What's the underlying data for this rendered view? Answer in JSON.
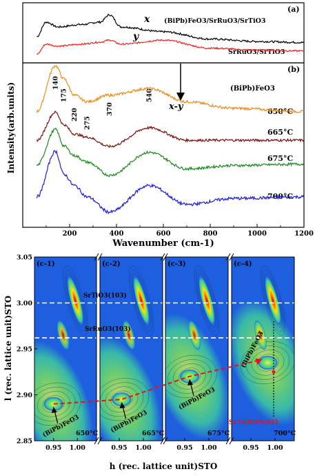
{
  "panel_a": {
    "label": "(a)",
    "x_label": "x",
    "y_label": "y",
    "legend_top": "(BiPb)FeO3/SrRuO3/SrTiO3",
    "legend_bottom": "SrRuO3/SrTiO3",
    "colors": {
      "x": "#000000",
      "y": "#ff2020"
    }
  },
  "panel_b": {
    "label": "(b)",
    "compound": "(BiPb)FeO3",
    "diff_label": "x-y",
    "ylabel": "Intensity(arb.units)",
    "xlabel": "Wavenumber (cm-1)",
    "peaks": [
      "140",
      "175",
      "220",
      "275",
      "370",
      "540"
    ],
    "temps": [
      "650°C",
      "665°C",
      "675°C",
      "700°C"
    ],
    "colors": [
      "#f08a1c",
      "#7a1212",
      "#1a8a1a",
      "#1a1ae0"
    ],
    "x_ticks": [
      "200",
      "400",
      "600",
      "800",
      "1000",
      "1200"
    ]
  },
  "panel_c": {
    "ylabel": "l (rec. lattice unit)STO",
    "xlabel": "h (rec. lattice unit)STO",
    "y_ticks": [
      "3.05",
      "3.00",
      "2.95",
      "2.90",
      "2.85"
    ],
    "x_ticks": [
      "0.95",
      "1.00"
    ],
    "subpanels": [
      {
        "label": "(c-1)",
        "temp": "650°C"
      },
      {
        "label": "(c-2)",
        "temp": "665°C"
      },
      {
        "label": "(c-3)",
        "temp": "675°C"
      },
      {
        "label": "(c-4)",
        "temp": "700°C"
      }
    ],
    "ann_sto": "SrTiO3(103)",
    "ann_sro": "SrRuO3(103)",
    "ann_bpfo": "(BiPb)FeO3",
    "ann_sti": "SrTi(BiPb)O3",
    "colors": {
      "bg": "#1e5fe0",
      "dash_red": "#e81010"
    }
  },
  "chart_data": [
    {
      "type": "line",
      "title": "",
      "xlabel": "Wavenumber (cm-1)",
      "ylabel": "Intensity(arb.units)",
      "xlim": [
        0,
        1200
      ],
      "series": [
        {
          "name": "x",
          "x": [
            60,
            100,
            150,
            250,
            330,
            370,
            420,
            600,
            800,
            1000,
            1200
          ],
          "values": [
            0.5,
            0.8,
            0.7,
            0.75,
            0.8,
            0.95,
            0.7,
            0.6,
            0.45,
            0.4,
            0.38
          ]
        },
        {
          "name": "y",
          "x": [
            60,
            100,
            150,
            250,
            330,
            370,
            420,
            600,
            800,
            1000,
            1200
          ],
          "values": [
            0.2,
            0.45,
            0.4,
            0.45,
            0.5,
            0.55,
            0.45,
            0.55,
            0.35,
            0.3,
            0.28
          ]
        },
        {
          "name": "650°C",
          "x": [
            60,
            140,
            175,
            220,
            275,
            370,
            540,
            700,
            900,
            1200
          ],
          "values": [
            0.3,
            1.0,
            0.8,
            0.55,
            0.45,
            0.55,
            0.65,
            0.45,
            0.35,
            0.3
          ]
        },
        {
          "name": "665°C",
          "x": [
            60,
            140,
            175,
            220,
            275,
            370,
            540,
            700,
            900,
            1200
          ],
          "values": [
            0.3,
            0.75,
            0.55,
            0.4,
            0.35,
            0.2,
            0.5,
            0.3,
            0.3,
            0.3
          ]
        },
        {
          "name": "675°C",
          "x": [
            60,
            140,
            175,
            220,
            275,
            370,
            540,
            700,
            900,
            1200
          ],
          "values": [
            0.3,
            0.85,
            0.6,
            0.45,
            0.35,
            0.15,
            0.5,
            0.25,
            0.3,
            0.32
          ]
        },
        {
          "name": "700°C",
          "x": [
            60,
            140,
            175,
            220,
            275,
            370,
            540,
            700,
            900,
            1200
          ],
          "values": [
            0.3,
            0.9,
            0.6,
            0.45,
            0.3,
            0.1,
            0.45,
            0.2,
            0.28,
            0.3
          ]
        }
      ]
    },
    {
      "type": "heatmap",
      "xlabel": "h (rec. lattice unit)STO",
      "ylabel": "l (rec. lattice unit)STO",
      "xlim": [
        0.91,
        1.04
      ],
      "ylim": [
        2.85,
        3.05
      ],
      "peaks": [
        {
          "name": "SrTiO3(103)",
          "h": 1.0,
          "l": 3.0
        },
        {
          "name": "SrRuO3(103)",
          "h": 0.97,
          "l": 2.965
        },
        {
          "name": "(BiPb)FeO3 650°C",
          "h": 0.95,
          "l": 2.89
        },
        {
          "name": "(BiPb)FeO3 665°C",
          "h": 0.955,
          "l": 2.895
        },
        {
          "name": "(BiPb)FeO3 675°C",
          "h": 0.96,
          "l": 2.92
        },
        {
          "name": "SrTi(BiPb)O3 700°C",
          "h": 0.985,
          "l": 2.935
        }
      ]
    }
  ]
}
